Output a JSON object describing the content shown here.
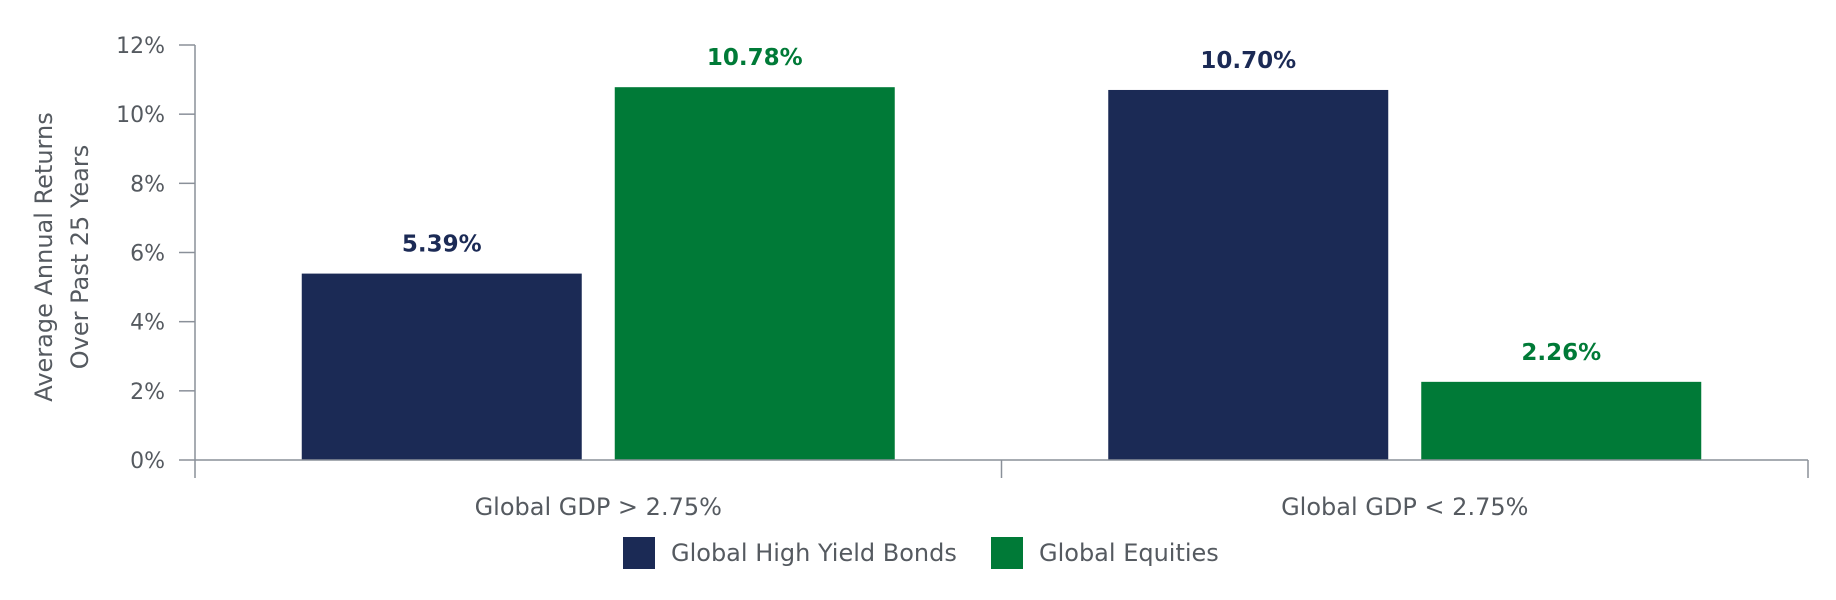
{
  "chart_data": {
    "type": "bar",
    "title": "",
    "xlabel": "",
    "ylabel_lines": [
      "Average Annual Returns",
      "Over Past 25 Years"
    ],
    "categories": [
      "Global GDP > 2.75%",
      "Global GDP < 2.75%"
    ],
    "ylim": [
      0,
      12
    ],
    "yticks": [
      0,
      2,
      4,
      6,
      8,
      10,
      12
    ],
    "ytick_labels": [
      "0%",
      "2%",
      "4%",
      "6%",
      "8%",
      "10%",
      "12%"
    ],
    "grid": false,
    "legend_position": "bottom-center",
    "series": [
      {
        "name": "Global High Yield Bonds",
        "color": "#1b2a55",
        "values": [
          5.39,
          10.7
        ],
        "labels": [
          "5.39%",
          "10.70%"
        ]
      },
      {
        "name": "Global Equities",
        "color": "#007a37",
        "values": [
          10.78,
          2.26
        ],
        "labels": [
          "10.78%",
          "2.26%"
        ]
      }
    ]
  }
}
